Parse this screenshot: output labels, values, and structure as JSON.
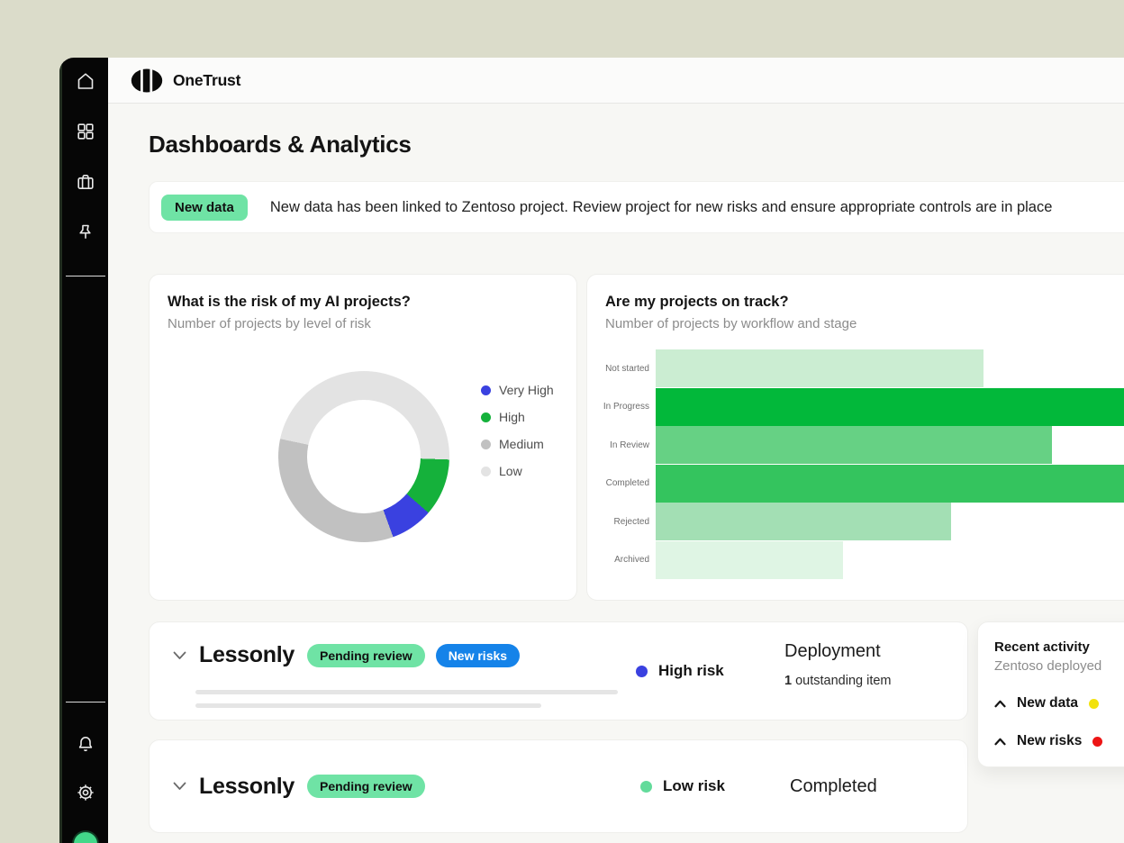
{
  "app": {
    "brand": "OneTrust",
    "page_title": "Dashboards & Analytics"
  },
  "sidebar": {
    "icons_top": [
      "home",
      "apps",
      "projects",
      "pinned"
    ],
    "icons_bottom": [
      "notifications",
      "settings"
    ]
  },
  "banner": {
    "badge": "New data",
    "badge_bg": "#6FE3A5",
    "message": "New data has been linked to Zentoso project. Review project for new risks and ensure appropriate controls are in place"
  },
  "chart_data": [
    {
      "type": "donut",
      "title": "What is the risk of my AI projects?",
      "subtitle": "Number of projects by level of risk",
      "legend_position": "right",
      "start_angle_deg": -78,
      "draw_order": [
        "Low",
        "High",
        "Very High",
        "Medium"
      ],
      "segments": [
        {
          "label": "Very High",
          "color": "#3A41E0",
          "angle_deg": 29,
          "share_pct": 8
        },
        {
          "label": "High",
          "color": "#15B13B",
          "angle_deg": 39,
          "share_pct": 11
        },
        {
          "label": "Medium",
          "color": "#C1C1C1",
          "angle_deg": 122,
          "share_pct": 34
        },
        {
          "label": "Low",
          "color": "#E3E3E3",
          "angle_deg": 170,
          "share_pct": 47
        }
      ]
    },
    {
      "type": "bar",
      "orientation": "horizontal",
      "title": "Are my projects on track?",
      "subtitle": "Number of projects by workflow and stage",
      "axis_labels_shown": false,
      "note": "x-axis unlabeled; In Progress and Completed bars run past the right edge of the visible card",
      "categories": [
        "Not started",
        "In Progress",
        "In Review",
        "Completed",
        "Rejected",
        "Archived"
      ],
      "values_pct_of_track": [
        60.4,
        103,
        73.1,
        103,
        54.5,
        34.6
      ],
      "clipped_right": [
        false,
        true,
        false,
        true,
        false,
        false
      ],
      "colors": [
        "#CBEDD2",
        "#02B83A",
        "#66D184",
        "#34C45E",
        "#A3DFB4",
        "#DFF5E4"
      ]
    }
  ],
  "project_rows": [
    {
      "name": "Lessonly",
      "badges": [
        {
          "label": "Pending review",
          "bg": "#6FE3A5",
          "fg": "#111111"
        },
        {
          "label": "New risks",
          "bg": "#1583E9",
          "fg": "#FFFFFF"
        }
      ],
      "risk_label": "High risk",
      "risk_color": "#3A41E0",
      "stage_label": "Deployment",
      "stage_note_value": "1",
      "stage_note_text": "outstanding item"
    },
    {
      "name": "Lessonly",
      "badges": [
        {
          "label": "Pending review",
          "bg": "#6FE3A5",
          "fg": "#111111"
        }
      ],
      "risk_label": "Low risk",
      "risk_color": "#63DB9B",
      "stage_label": "Completed"
    }
  ],
  "recent_activity": {
    "title": "Recent activity",
    "subtitle": "Zentoso deployed",
    "items": [
      {
        "label": "New data",
        "dot_color": "#F2E20D"
      },
      {
        "label": "New risks",
        "dot_color": "#ED1515"
      }
    ]
  }
}
